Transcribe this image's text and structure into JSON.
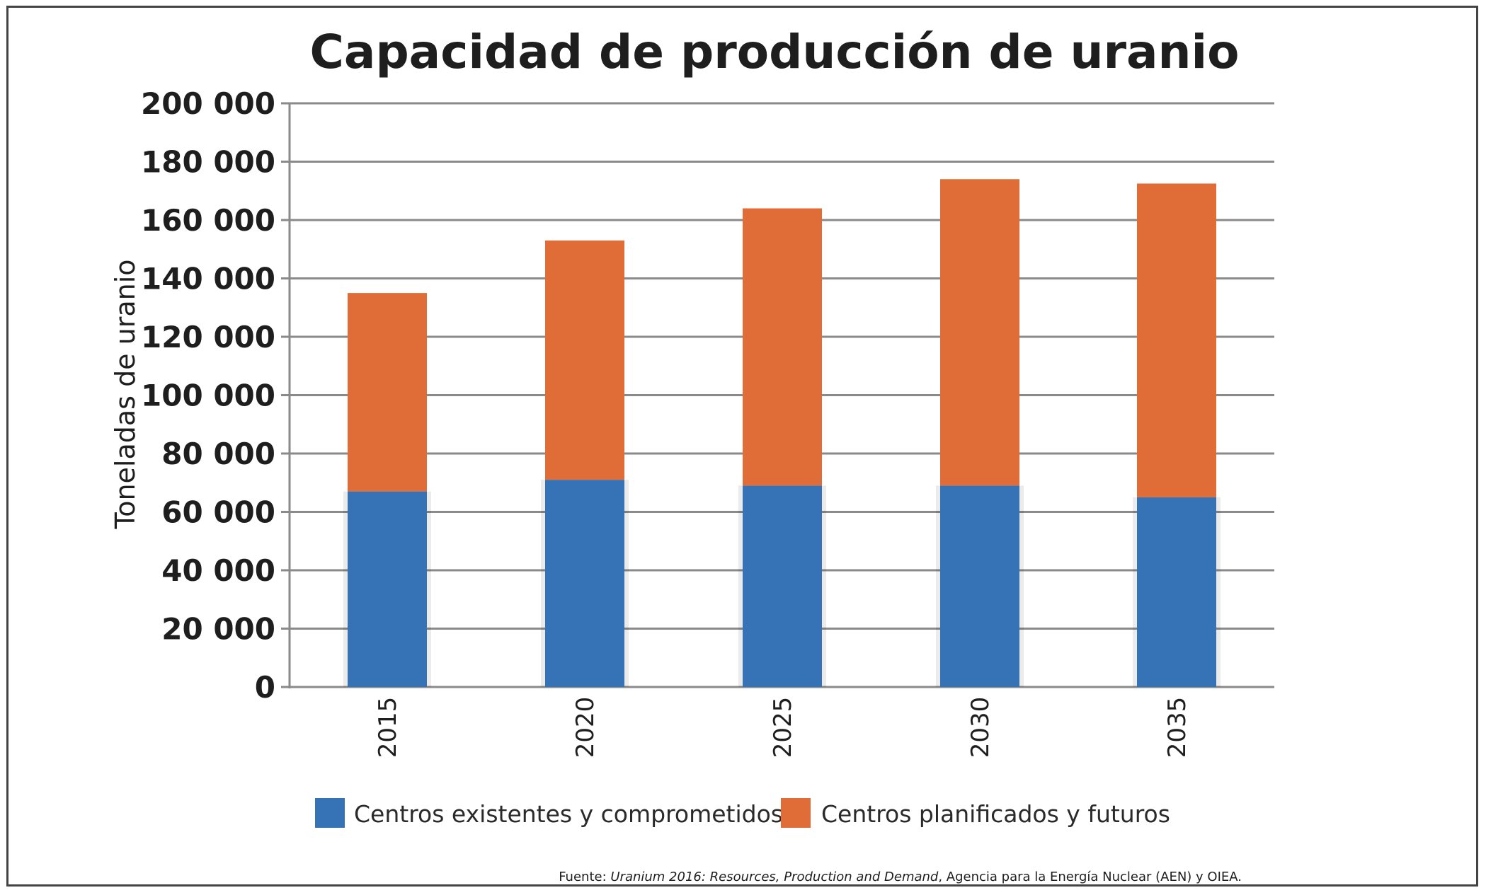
{
  "chart_data": {
    "type": "bar",
    "stacked": true,
    "title": "Capacidad de producción de uranio",
    "xlabel": "",
    "ylabel": "Toneladas de uranio",
    "categories": [
      "2015",
      "2020",
      "2025",
      "2030",
      "2035"
    ],
    "series": [
      {
        "name": "Centros existentes y comprometidos",
        "color": "#3573b6",
        "values": [
          67000,
          71000,
          69000,
          69000,
          65000
        ]
      },
      {
        "name": "Centros planificados y futuros",
        "color": "#e06c37",
        "values": [
          68000,
          82000,
          95000,
          105000,
          107500
        ]
      }
    ],
    "ylim": [
      0,
      200000
    ],
    "yticks": [
      0,
      20000,
      40000,
      60000,
      80000,
      100000,
      120000,
      140000,
      160000,
      180000,
      200000
    ],
    "ytick_labels": [
      "0",
      "20 000",
      "40 000",
      "60 000",
      "80 000",
      "100 000",
      "120 000",
      "140 000",
      "160 000",
      "180 000",
      "200 000"
    ],
    "grid": true,
    "legend_position": "bottom",
    "source": {
      "prefix": "Fuente: ",
      "italic": "Uranium 2016: Resources, Production and Demand",
      "suffix": ", Agencia para la Energía Nuclear (AEN) y OIEA."
    }
  }
}
